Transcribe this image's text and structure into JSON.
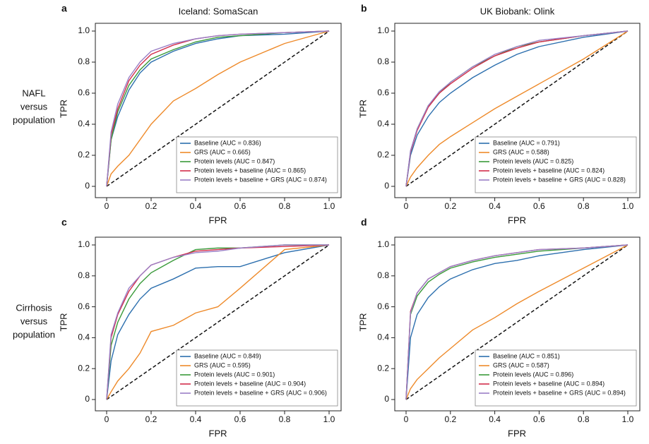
{
  "row_labels": [
    [
      "NAFL",
      "versus",
      "population"
    ],
    [
      "Cirrhosis",
      "versus",
      "population"
    ]
  ],
  "chart_data": [
    {
      "type": "line",
      "panel_label": "a",
      "title": "Iceland: SomaScan",
      "x_label": "FPR",
      "y_label": "TPR",
      "xlim": [
        0,
        1
      ],
      "ylim": [
        0,
        1
      ],
      "xticks": [
        0,
        0.2,
        0.4,
        0.6,
        0.8,
        {
          "value": 1,
          "label": "1.0"
        }
      ],
      "yticks": [
        0,
        0.2,
        0.4,
        0.6,
        0.8,
        {
          "value": 1,
          "label": "1.0"
        }
      ],
      "x": [
        0,
        0.02,
        0.05,
        0.1,
        0.15,
        0.2,
        0.3,
        0.4,
        0.5,
        0.6,
        0.8,
        1
      ],
      "series": [
        {
          "name": "Baseline (AUC = 0.836)",
          "color": "#2c6fae",
          "values": [
            0,
            0.3,
            0.45,
            0.62,
            0.73,
            0.8,
            0.87,
            0.92,
            0.95,
            0.97,
            0.98,
            1
          ]
        },
        {
          "name": "GRS (AUC = 0.665)",
          "color": "#ee8a2a",
          "values": [
            0,
            0.08,
            0.13,
            0.2,
            0.3,
            0.4,
            0.55,
            0.63,
            0.72,
            0.8,
            0.92,
            1
          ]
        },
        {
          "name": "Protein levels (AUC = 0.847)",
          "color": "#3a9a3a",
          "values": [
            0,
            0.3,
            0.48,
            0.65,
            0.75,
            0.82,
            0.88,
            0.93,
            0.96,
            0.97,
            0.99,
            1
          ]
        },
        {
          "name": "Protein levels + baseline (AUC = 0.865)",
          "color": "#d22d4b",
          "values": [
            0,
            0.33,
            0.5,
            0.68,
            0.78,
            0.85,
            0.91,
            0.95,
            0.97,
            0.98,
            0.99,
            1
          ]
        },
        {
          "name": "Protein levels + baseline + GRS (AUC = 0.874)",
          "color": "#9a7fc6",
          "values": [
            0,
            0.35,
            0.53,
            0.7,
            0.8,
            0.87,
            0.92,
            0.95,
            0.97,
            0.98,
            0.99,
            1
          ]
        }
      ]
    },
    {
      "type": "line",
      "panel_label": "b",
      "title": "UK Biobank: Olink",
      "x_label": "FPR",
      "y_label": "TPR",
      "xlim": [
        0,
        1
      ],
      "ylim": [
        0,
        1
      ],
      "xticks": [
        0,
        0.2,
        0.4,
        0.6,
        0.8,
        {
          "value": 1,
          "label": "1.0"
        }
      ],
      "yticks": [
        0,
        0.2,
        0.4,
        0.6,
        0.8,
        {
          "value": 1,
          "label": "1.0"
        }
      ],
      "x": [
        0,
        0.02,
        0.05,
        0.1,
        0.15,
        0.2,
        0.3,
        0.4,
        0.5,
        0.6,
        0.8,
        1
      ],
      "series": [
        {
          "name": "Baseline (AUC = 0.791)",
          "color": "#2c6fae",
          "values": [
            0,
            0.2,
            0.33,
            0.45,
            0.54,
            0.6,
            0.7,
            0.78,
            0.85,
            0.9,
            0.96,
            1
          ]
        },
        {
          "name": "GRS (AUC = 0.588)",
          "color": "#ee8a2a",
          "values": [
            0,
            0.06,
            0.12,
            0.2,
            0.27,
            0.32,
            0.41,
            0.5,
            0.58,
            0.66,
            0.82,
            1
          ]
        },
        {
          "name": "Protein levels (AUC = 0.825)",
          "color": "#3a9a3a",
          "values": [
            0,
            0.22,
            0.37,
            0.52,
            0.6,
            0.67,
            0.77,
            0.84,
            0.9,
            0.93,
            0.97,
            1
          ]
        },
        {
          "name": "Protein levels + baseline (AUC = 0.824)",
          "color": "#d22d4b",
          "values": [
            0,
            0.22,
            0.36,
            0.51,
            0.6,
            0.66,
            0.76,
            0.84,
            0.89,
            0.93,
            0.97,
            1
          ]
        },
        {
          "name": "Protein levels + baseline + GRS (AUC = 0.828)",
          "color": "#9a7fc6",
          "values": [
            0,
            0.23,
            0.37,
            0.52,
            0.61,
            0.67,
            0.77,
            0.85,
            0.9,
            0.94,
            0.97,
            1
          ]
        }
      ]
    },
    {
      "type": "line",
      "panel_label": "c",
      "x_label": "FPR",
      "y_label": "TPR",
      "xlim": [
        0,
        1
      ],
      "ylim": [
        0,
        1
      ],
      "xticks": [
        0,
        0.2,
        0.4,
        0.6,
        0.8,
        {
          "value": 1,
          "label": "1.0"
        }
      ],
      "yticks": [
        0,
        0.2,
        0.4,
        0.6,
        0.8,
        {
          "value": 1,
          "label": "1.0"
        }
      ],
      "x": [
        0,
        0.02,
        0.05,
        0.1,
        0.15,
        0.2,
        0.3,
        0.4,
        0.5,
        0.6,
        0.8,
        1
      ],
      "series": [
        {
          "name": "Baseline (AUC = 0.849)",
          "color": "#2c6fae",
          "values": [
            0,
            0.25,
            0.42,
            0.55,
            0.65,
            0.72,
            0.78,
            0.85,
            0.86,
            0.86,
            0.95,
            1
          ]
        },
        {
          "name": "GRS (AUC = 0.595)",
          "color": "#ee8a2a",
          "values": [
            0,
            0.05,
            0.12,
            0.2,
            0.3,
            0.44,
            0.48,
            0.56,
            0.6,
            0.72,
            0.97,
            1
          ]
        },
        {
          "name": "Protein levels (AUC = 0.901)",
          "color": "#3a9a3a",
          "values": [
            0,
            0.35,
            0.5,
            0.65,
            0.75,
            0.82,
            0.9,
            0.97,
            0.98,
            0.98,
            1,
            1
          ]
        },
        {
          "name": "Protein levels + baseline (AUC = 0.904)",
          "color": "#d22d4b",
          "values": [
            0,
            0.4,
            0.55,
            0.7,
            0.8,
            0.87,
            0.92,
            0.96,
            0.97,
            0.98,
            0.99,
            1
          ]
        },
        {
          "name": "Protein levels + baseline + GRS (AUC = 0.906)",
          "color": "#9a7fc6",
          "values": [
            0,
            0.42,
            0.56,
            0.72,
            0.8,
            0.87,
            0.92,
            0.95,
            0.96,
            0.98,
            1,
            1
          ]
        }
      ]
    },
    {
      "type": "line",
      "panel_label": "d",
      "x_label": "FPR",
      "y_label": "TPR",
      "xlim": [
        0,
        1
      ],
      "ylim": [
        0,
        1
      ],
      "xticks": [
        0,
        0.2,
        0.4,
        0.6,
        0.8,
        {
          "value": 1,
          "label": "1.0"
        }
      ],
      "yticks": [
        0,
        0.2,
        0.4,
        0.6,
        0.8,
        {
          "value": 1,
          "label": "1.0"
        }
      ],
      "x": [
        0,
        0.02,
        0.05,
        0.1,
        0.15,
        0.2,
        0.3,
        0.4,
        0.5,
        0.6,
        0.8,
        1
      ],
      "series": [
        {
          "name": "Baseline (AUC = 0.851)",
          "color": "#2c6fae",
          "values": [
            0,
            0.4,
            0.55,
            0.66,
            0.73,
            0.78,
            0.84,
            0.88,
            0.9,
            0.93,
            0.97,
            1
          ]
        },
        {
          "name": "GRS (AUC = 0.587)",
          "color": "#ee8a2a",
          "values": [
            0,
            0.07,
            0.13,
            0.2,
            0.27,
            0.33,
            0.45,
            0.53,
            0.62,
            0.7,
            0.85,
            1
          ]
        },
        {
          "name": "Protein levels (AUC = 0.896)",
          "color": "#3a9a3a",
          "values": [
            0,
            0.55,
            0.67,
            0.76,
            0.81,
            0.85,
            0.89,
            0.92,
            0.94,
            0.96,
            0.98,
            1
          ]
        },
        {
          "name": "Protein levels + baseline (AUC = 0.894)",
          "color": "#d22d4b",
          "values": [
            0,
            0.57,
            0.69,
            0.78,
            0.82,
            0.86,
            0.9,
            0.93,
            0.95,
            0.97,
            0.98,
            1
          ]
        },
        {
          "name": "Protein levels + baseline + GRS (AUC = 0.894)",
          "color": "#9a7fc6",
          "values": [
            0,
            0.56,
            0.69,
            0.78,
            0.82,
            0.86,
            0.9,
            0.93,
            0.95,
            0.97,
            0.98,
            1
          ]
        }
      ]
    }
  ]
}
